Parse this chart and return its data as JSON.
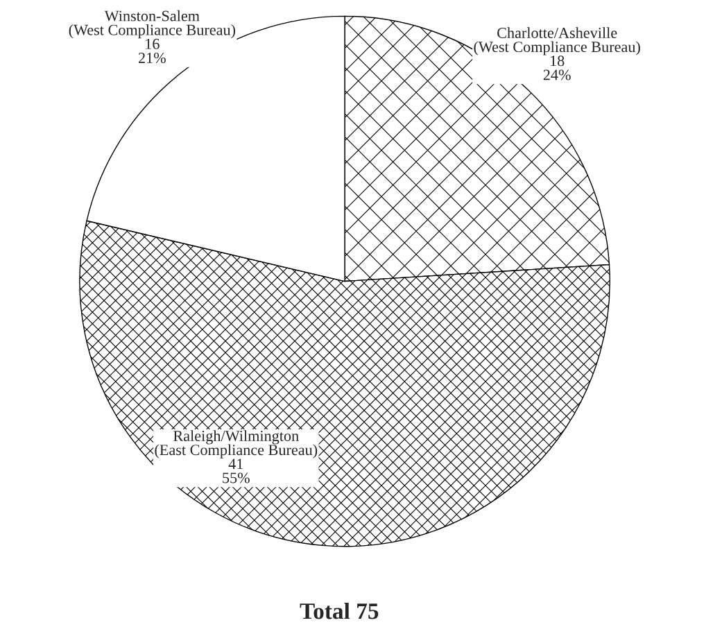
{
  "chart_data": {
    "type": "pie",
    "title": "Total 75",
    "categories": [
      "Charlotte/Asheville\n(West Compliance Bureau)",
      "Raleigh/Wilmington\n(East Compliance Bureau)",
      "Winston-Salem\n(West Compliance Bureau)"
    ],
    "values": [
      18,
      41,
      16
    ],
    "value_labels": [
      "18\n24%",
      "41\n55%",
      "16\n21%"
    ],
    "colors": [
      "#ffffff",
      "#ffffff",
      "#ffffff"
    ],
    "legend": false
  }
}
